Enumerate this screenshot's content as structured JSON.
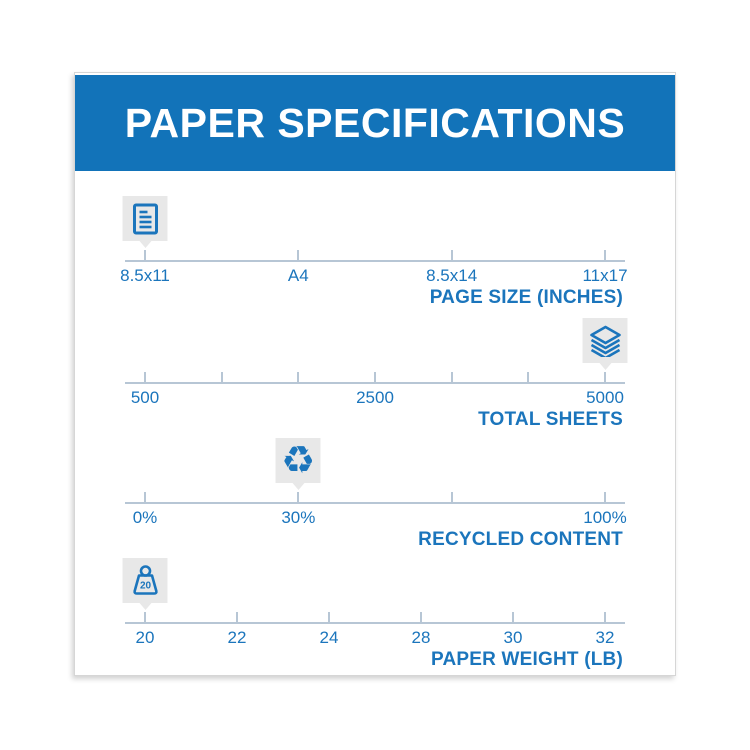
{
  "header": {
    "title": "PAPER SPECIFICATIONS",
    "background": "#1273b9",
    "text_color": "#ffffff"
  },
  "colors": {
    "accent_blue": "#1b75bc",
    "axis_gray_blue": "#b7c6d5",
    "marker_bg": "#e8e8e8",
    "card_bg": "#ffffff"
  },
  "scales": [
    {
      "name": "page-size",
      "title": "PAGE SIZE (INCHES)",
      "icon": "document-icon",
      "ticks": [
        "8.5x11",
        "A4",
        "8.5x14",
        "11x17"
      ],
      "selected_index": 0,
      "selected_value": "8.5x11"
    },
    {
      "name": "total-sheets",
      "title": "TOTAL SHEETS",
      "icon": "paper-stack-icon",
      "ticks": [
        "500",
        "",
        "",
        "2500",
        "",
        "",
        "5000"
      ],
      "selected_index": 6,
      "selected_value": "5000"
    },
    {
      "name": "recycled-content",
      "title": "RECYCLED CONTENT",
      "icon": "recycle-icon",
      "ticks": [
        "0%",
        "30%",
        "",
        "100%"
      ],
      "selected_index": 1,
      "selected_value": "30%"
    },
    {
      "name": "paper-weight",
      "title": "PAPER WEIGHT (LB)",
      "icon": "weight-icon",
      "icon_label": "20",
      "ticks": [
        "20",
        "22",
        "24",
        "28",
        "30",
        "32"
      ],
      "selected_index": 0,
      "selected_value": "20"
    }
  ]
}
